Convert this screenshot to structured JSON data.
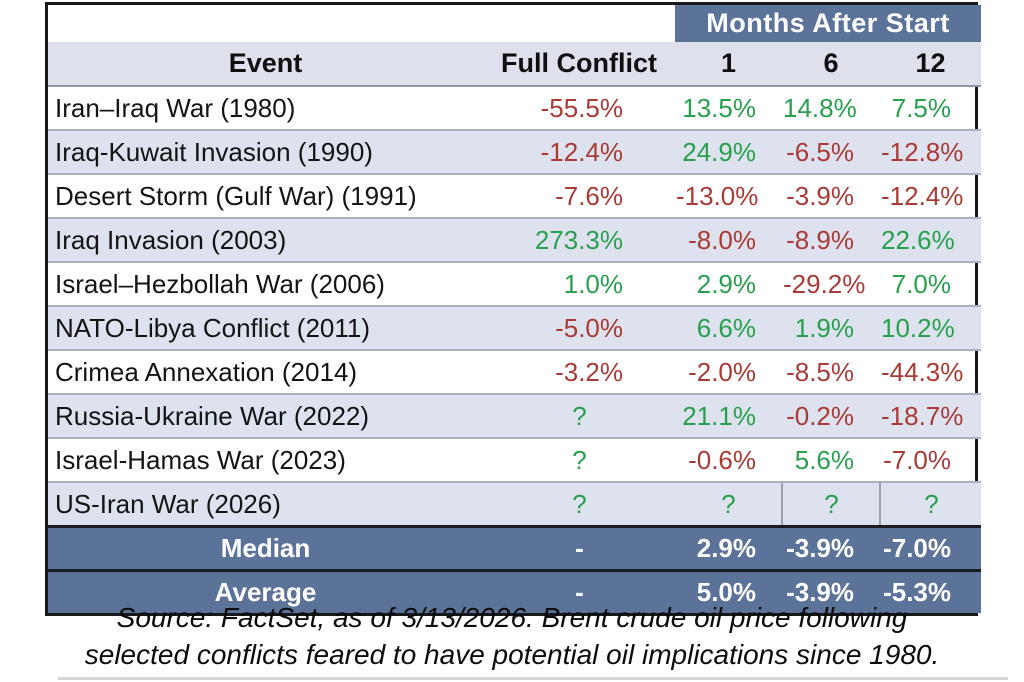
{
  "chart_data": {
    "type": "table",
    "banner": "Months After Start",
    "columns": [
      "Event",
      "Full Conflict",
      "1",
      "6",
      "12"
    ],
    "rows": [
      {
        "event": "Iran–Iraq War (1980)",
        "values": [
          "-55.5%",
          "13.5%",
          "14.8%",
          "7.5%"
        ]
      },
      {
        "event": "Iraq-Kuwait Invasion (1990)",
        "values": [
          "-12.4%",
          "24.9%",
          "-6.5%",
          "-12.8%"
        ]
      },
      {
        "event": "Desert Storm (Gulf War) (1991)",
        "values": [
          "-7.6%",
          "-13.0%",
          "-3.9%",
          "-12.4%"
        ]
      },
      {
        "event": "Iraq Invasion (2003)",
        "values": [
          "273.3%",
          "-8.0%",
          "-8.9%",
          "22.6%"
        ]
      },
      {
        "event": "Israel–Hezbollah War (2006)",
        "values": [
          "1.0%",
          "2.9%",
          "-29.2%",
          "7.0%"
        ]
      },
      {
        "event": "NATO-Libya Conflict (2011)",
        "values": [
          "-5.0%",
          "6.6%",
          "1.9%",
          "10.2%"
        ]
      },
      {
        "event": "Crimea Annexation (2014)",
        "values": [
          "-3.2%",
          "-2.0%",
          "-8.5%",
          "-44.3%"
        ]
      },
      {
        "event": "Russia-Ukraine War (2022)",
        "values": [
          "?",
          "21.1%",
          "-0.2%",
          "-18.7%"
        ]
      },
      {
        "event": "Israel-Hamas War (2023)",
        "values": [
          "?",
          "-0.6%",
          "5.6%",
          "-7.0%"
        ]
      },
      {
        "event": "US-Iran War (2026)",
        "values": [
          "?",
          "?",
          "?",
          "?"
        ]
      }
    ],
    "summary_rows": [
      {
        "label": "Median",
        "values": [
          "-",
          "2.9%",
          "-3.9%",
          "-7.0%"
        ]
      },
      {
        "label": "Average",
        "values": [
          "-",
          "5.0%",
          "-3.9%",
          "-5.3%"
        ]
      }
    ],
    "source_note_line1": "Source: FactSet, as of 3/13/2026. Brent crude oil price following",
    "source_note_line2": "selected conflicts feared to have potential oil implications since 1980."
  },
  "colors": {
    "positive_green": "#28a04e",
    "negative_red": "#aa3a35",
    "banner_blue": "#5b7399",
    "summary_blue": "#5c7399",
    "header_bg": "#dee1ec",
    "row_alt_bg": "#dde2ee",
    "border_black": "#17181c"
  }
}
